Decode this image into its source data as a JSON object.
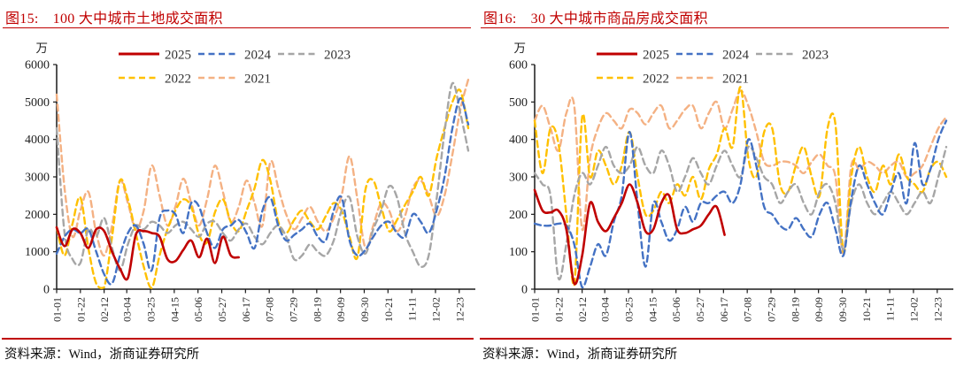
{
  "source_note": {
    "label": "资料来源：Wind，浙商证券研究所"
  },
  "colors": {
    "title_red": "#c00000",
    "axis": "#1a1a1a",
    "tick_text": "#1f1f1f",
    "legend_text": "#333333"
  },
  "chart_data": [
    {
      "type": "line",
      "fig_label": "图15:",
      "title": "100 大中城市土地成交面积",
      "unit": "万",
      "ylim": [
        0,
        6000
      ],
      "ytick_step": 1000,
      "grid": false,
      "legend_position": "top-inside",
      "x_tick_labels": [
        "01-01",
        "01-22",
        "02-12",
        "03-04",
        "03-25",
        "04-15",
        "05-06",
        "05-27",
        "06-17",
        "07-08",
        "07-29",
        "08-19",
        "09-09",
        "09-30",
        "10-21",
        "11-11",
        "12-02",
        "12-23"
      ],
      "x": [
        "01-01",
        "01-08",
        "01-15",
        "01-22",
        "01-29",
        "02-05",
        "02-12",
        "02-19",
        "02-26",
        "03-05",
        "03-12",
        "03-19",
        "03-26",
        "04-02",
        "04-09",
        "04-16",
        "04-23",
        "04-30",
        "05-07",
        "05-14",
        "05-21",
        "05-28",
        "06-04",
        "06-11",
        "06-18",
        "06-25",
        "07-02",
        "07-09",
        "07-16",
        "07-23",
        "07-30",
        "08-06",
        "08-13",
        "08-20",
        "08-27",
        "09-03",
        "09-10",
        "09-17",
        "09-24",
        "10-01",
        "10-08",
        "10-15",
        "10-22",
        "10-29",
        "11-05",
        "11-12",
        "11-19",
        "11-26",
        "12-03",
        "12-10",
        "12-17",
        "12-24",
        "12-31"
      ],
      "series": [
        {
          "name": "2025",
          "color": "#c00000",
          "dash": "solid",
          "values": [
            1650,
            1150,
            1600,
            1500,
            1100,
            1600,
            1550,
            1000,
            550,
            300,
            1450,
            1550,
            1500,
            1400,
            800,
            750,
            1050,
            1300,
            850,
            1350,
            700,
            1400,
            900,
            850,
            null,
            null,
            null,
            null,
            null,
            null,
            null,
            null,
            null,
            null,
            null,
            null,
            null,
            null,
            null,
            null,
            null,
            null,
            null,
            null,
            null,
            null,
            null,
            null,
            null,
            null,
            null,
            null,
            null
          ]
        },
        {
          "name": "2024",
          "color": "#4472c4",
          "dash": "dashed",
          "values": [
            950,
            1400,
            1600,
            1500,
            1600,
            1000,
            400,
            150,
            900,
            1500,
            1700,
            1200,
            500,
            1900,
            2100,
            2000,
            1500,
            2300,
            2200,
            1500,
            1100,
            1600,
            1700,
            1850,
            1500,
            1100,
            2100,
            2450,
            1700,
            1300,
            1450,
            1600,
            1750,
            1400,
            1300,
            2100,
            2450,
            1300,
            900,
            1050,
            1400,
            1700,
            1800,
            1500,
            1400,
            2000,
            1800,
            1500,
            2100,
            3000,
            4300,
            5100,
            4400
          ]
        },
        {
          "name": "2023",
          "color": "#a6a6a6",
          "dash": "dashed",
          "values": [
            4300,
            1500,
            800,
            700,
            1600,
            1400,
            1900,
            1100,
            500,
            1200,
            1700,
            1600,
            1800,
            1700,
            1500,
            1700,
            1800,
            1600,
            1400,
            1750,
            1800,
            1500,
            1300,
            1600,
            1750,
            1400,
            1200,
            1500,
            1700,
            1400,
            800,
            900,
            1200,
            1000,
            900,
            1300,
            2100,
            2450,
            1400,
            950,
            1600,
            2100,
            2750,
            2450,
            1500,
            1000,
            600,
            900,
            2400,
            4200,
            5500,
            4700,
            3700
          ]
        },
        {
          "name": "2022",
          "color": "#ffc000",
          "dash": "dashed",
          "values": [
            1650,
            900,
            1750,
            2450,
            1100,
            150,
            50,
            1400,
            2900,
            2400,
            1500,
            600,
            30,
            900,
            1600,
            2100,
            2400,
            2200,
            1450,
            1250,
            2050,
            2400,
            1800,
            1550,
            2100,
            2700,
            3450,
            2900,
            1800,
            1500,
            1850,
            2100,
            1800,
            1600,
            1950,
            2300,
            2100,
            1400,
            850,
            2650,
            2900,
            2200,
            1550,
            1850,
            2250,
            2600,
            3000,
            2500,
            3500,
            4300,
            5000,
            5300,
            4300
          ]
        },
        {
          "name": "2021",
          "color": "#f4b183",
          "dash": "dashed",
          "values": [
            5200,
            2700,
            1400,
            2100,
            2600,
            1500,
            900,
            1700,
            2900,
            2300,
            1600,
            2100,
            3300,
            2500,
            1700,
            2200,
            2950,
            2300,
            1700,
            2400,
            3300,
            2600,
            1800,
            2200,
            2900,
            2300,
            1700,
            3400,
            2700,
            2000,
            1600,
            1900,
            2200,
            1800,
            1550,
            1900,
            2500,
            3550,
            2400,
            1100,
            1700,
            2300,
            2100,
            1550,
            1950,
            2700,
            2900,
            2500,
            1950,
            2500,
            3600,
            4800,
            5600
          ]
        }
      ]
    },
    {
      "type": "line",
      "fig_label": "图16:",
      "title": "30 大中城市商品房成交面积",
      "unit": "万",
      "ylim": [
        0,
        600
      ],
      "ytick_step": 100,
      "grid": false,
      "legend_position": "top-inside",
      "x_tick_labels": [
        "01-01",
        "01-22",
        "02-12",
        "03-04",
        "03-25",
        "04-15",
        "05-06",
        "05-27",
        "06-17",
        "07-08",
        "07-29",
        "08-19",
        "09-09",
        "09-30",
        "10-21",
        "11-11",
        "12-02",
        "12-23"
      ],
      "x": [
        "01-01",
        "01-08",
        "01-15",
        "01-22",
        "01-29",
        "02-05",
        "02-12",
        "02-19",
        "02-26",
        "03-05",
        "03-12",
        "03-19",
        "03-26",
        "04-02",
        "04-09",
        "04-16",
        "04-23",
        "04-30",
        "05-07",
        "05-14",
        "05-21",
        "05-28",
        "06-04",
        "06-11",
        "06-18",
        "06-25",
        "07-02",
        "07-09",
        "07-16",
        "07-23",
        "07-30",
        "08-06",
        "08-13",
        "08-20",
        "08-27",
        "09-03",
        "09-10",
        "09-17",
        "09-24",
        "10-01",
        "10-08",
        "10-15",
        "10-22",
        "10-29",
        "11-05",
        "11-12",
        "11-19",
        "11-26",
        "12-03",
        "12-10",
        "12-17",
        "12-24",
        "12-31"
      ],
      "series": [
        {
          "name": "2025",
          "color": "#c00000",
          "dash": "solid",
          "values": [
            265,
            210,
            205,
            210,
            160,
            15,
            90,
            230,
            180,
            155,
            190,
            230,
            280,
            230,
            155,
            160,
            230,
            250,
            160,
            150,
            160,
            170,
            200,
            220,
            145,
            null,
            null,
            null,
            null,
            null,
            null,
            null,
            null,
            null,
            null,
            null,
            null,
            null,
            null,
            null,
            null,
            null,
            null,
            null,
            null,
            null,
            null,
            null,
            null,
            null,
            null,
            null,
            null
          ]
        },
        {
          "name": "2024",
          "color": "#4472c4",
          "dash": "dashed",
          "values": [
            175,
            170,
            170,
            175,
            170,
            120,
            5,
            60,
            120,
            90,
            180,
            250,
            420,
            230,
            60,
            230,
            180,
            130,
            160,
            220,
            180,
            230,
            230,
            250,
            260,
            230,
            280,
            400,
            330,
            220,
            200,
            170,
            160,
            190,
            160,
            140,
            200,
            230,
            160,
            90,
            240,
            330,
            280,
            230,
            200,
            260,
            310,
            230,
            390,
            280,
            320,
            400,
            450
          ]
        },
        {
          "name": "2023",
          "color": "#a6a6a6",
          "dash": "dashed",
          "values": [
            310,
            280,
            250,
            30,
            120,
            250,
            310,
            280,
            330,
            380,
            330,
            310,
            330,
            380,
            330,
            310,
            370,
            330,
            260,
            300,
            350,
            310,
            280,
            330,
            370,
            330,
            300,
            380,
            350,
            300,
            280,
            230,
            260,
            280,
            230,
            200,
            260,
            280,
            230,
            105,
            230,
            280,
            230,
            200,
            230,
            260,
            230,
            200,
            230,
            260,
            230,
            300,
            380
          ]
        },
        {
          "name": "2022",
          "color": "#ffc000",
          "dash": "dashed",
          "values": [
            450,
            310,
            430,
            390,
            200,
            10,
            460,
            300,
            370,
            330,
            280,
            330,
            420,
            300,
            200,
            210,
            260,
            230,
            280,
            250,
            300,
            240,
            320,
            360,
            430,
            380,
            540,
            350,
            300,
            420,
            430,
            280,
            260,
            330,
            380,
            300,
            250,
            430,
            440,
            100,
            300,
            380,
            300,
            260,
            330,
            280,
            360,
            300,
            280,
            260,
            320,
            340,
            300
          ]
        },
        {
          "name": "2021",
          "color": "#f4b183",
          "dash": "dashed",
          "values": [
            450,
            490,
            430,
            370,
            470,
            490,
            160,
            350,
            430,
            470,
            450,
            430,
            480,
            470,
            440,
            470,
            490,
            430,
            450,
            480,
            490,
            430,
            470,
            500,
            430,
            480,
            530,
            490,
            420,
            340,
            330,
            340,
            340,
            330,
            310,
            340,
            360,
            330,
            300,
            95,
            330,
            320,
            340,
            330,
            310,
            330,
            340,
            300,
            310,
            330,
            380,
            430,
            460
          ]
        }
      ]
    }
  ]
}
